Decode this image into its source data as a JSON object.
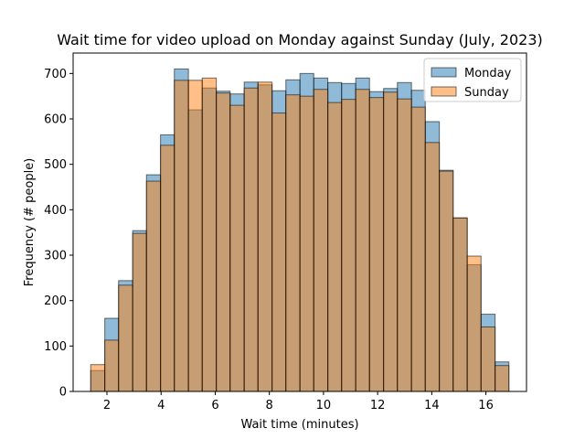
{
  "chart_data": {
    "type": "bar",
    "title": "Wait time for video upload on Monday against Sunday (July, 2023)",
    "xlabel": "Wait time (minutes)",
    "ylabel": "Frequency (# people)",
    "xlim": [
      0.75,
      17.5
    ],
    "ylim": [
      0,
      745
    ],
    "xticks": [
      2,
      4,
      6,
      8,
      10,
      12,
      14,
      16
    ],
    "yticks": [
      0,
      100,
      200,
      300,
      400,
      500,
      600,
      700
    ],
    "bin_edges": [
      1.4,
      1.92,
      2.43,
      2.95,
      3.46,
      3.98,
      4.49,
      5.01,
      5.52,
      6.04,
      6.55,
      7.07,
      7.58,
      8.1,
      8.61,
      9.13,
      9.64,
      10.16,
      10.67,
      11.19,
      11.7,
      12.22,
      12.73,
      13.25,
      13.76,
      14.28,
      14.79,
      15.31,
      15.82,
      16.34,
      16.85
    ],
    "legend_position": "top-right",
    "series": [
      {
        "name": "Monday",
        "color": "#1f77b4",
        "values": [
          46,
          161,
          244,
          354,
          477,
          565,
          710,
          620,
          668,
          661,
          655,
          681,
          675,
          662,
          686,
          700,
          690,
          680,
          678,
          690,
          660,
          667,
          680,
          663,
          594,
          487,
          382,
          279,
          170,
          65
        ]
      },
      {
        "name": "Sunday",
        "color": "#ff7f0e",
        "values": [
          59,
          113,
          234,
          348,
          463,
          542,
          685,
          685,
          690,
          657,
          630,
          668,
          681,
          613,
          653,
          650,
          665,
          636,
          643,
          665,
          647,
          659,
          644,
          626,
          548,
          485,
          382,
          298,
          142,
          57
        ]
      }
    ]
  }
}
